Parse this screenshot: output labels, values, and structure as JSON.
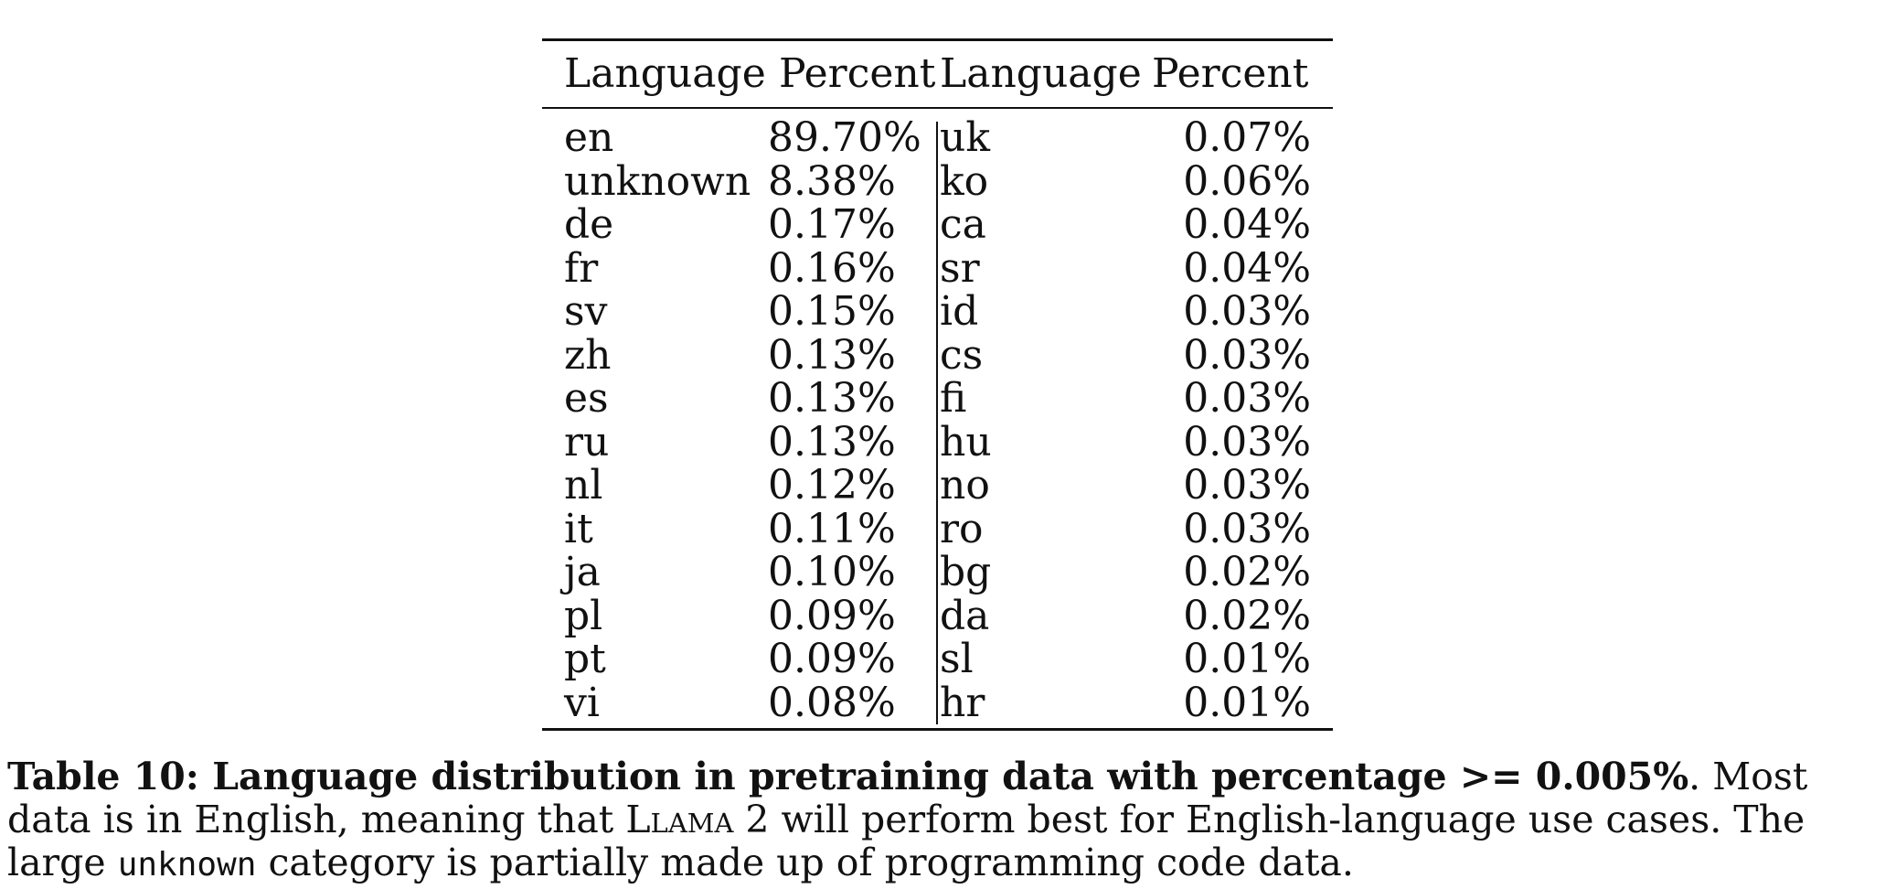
{
  "table": {
    "headers": [
      "Language",
      "Percent",
      "Language",
      "Percent"
    ],
    "rows": [
      [
        "en",
        "89.70%",
        "uk",
        "0.07%"
      ],
      [
        "unknown",
        "8.38%",
        "ko",
        "0.06%"
      ],
      [
        "de",
        "0.17%",
        "ca",
        "0.04%"
      ],
      [
        "fr",
        "0.16%",
        "sr",
        "0.04%"
      ],
      [
        "sv",
        "0.15%",
        "id",
        "0.03%"
      ],
      [
        "zh",
        "0.13%",
        "cs",
        "0.03%"
      ],
      [
        "es",
        "0.13%",
        "fi",
        "0.03%"
      ],
      [
        "ru",
        "0.13%",
        "hu",
        "0.03%"
      ],
      [
        "nl",
        "0.12%",
        "no",
        "0.03%"
      ],
      [
        "it",
        "0.11%",
        "ro",
        "0.03%"
      ],
      [
        "ja",
        "0.10%",
        "bg",
        "0.02%"
      ],
      [
        "pl",
        "0.09%",
        "da",
        "0.02%"
      ],
      [
        "pt",
        "0.09%",
        "sl",
        "0.01%"
      ],
      [
        "vi",
        "0.08%",
        "hr",
        "0.01%"
      ]
    ]
  },
  "caption": {
    "bold": "Table 10: Language distribution in pretraining data with percentage >= 0.005%",
    "text1": ". Most data is in English, meaning that ",
    "model_name": "Llama 2",
    "text2": " will perform best for English-language use cases.  The large ",
    "code_word": "unknown",
    "text3": " category is partially made up of programming code data."
  }
}
